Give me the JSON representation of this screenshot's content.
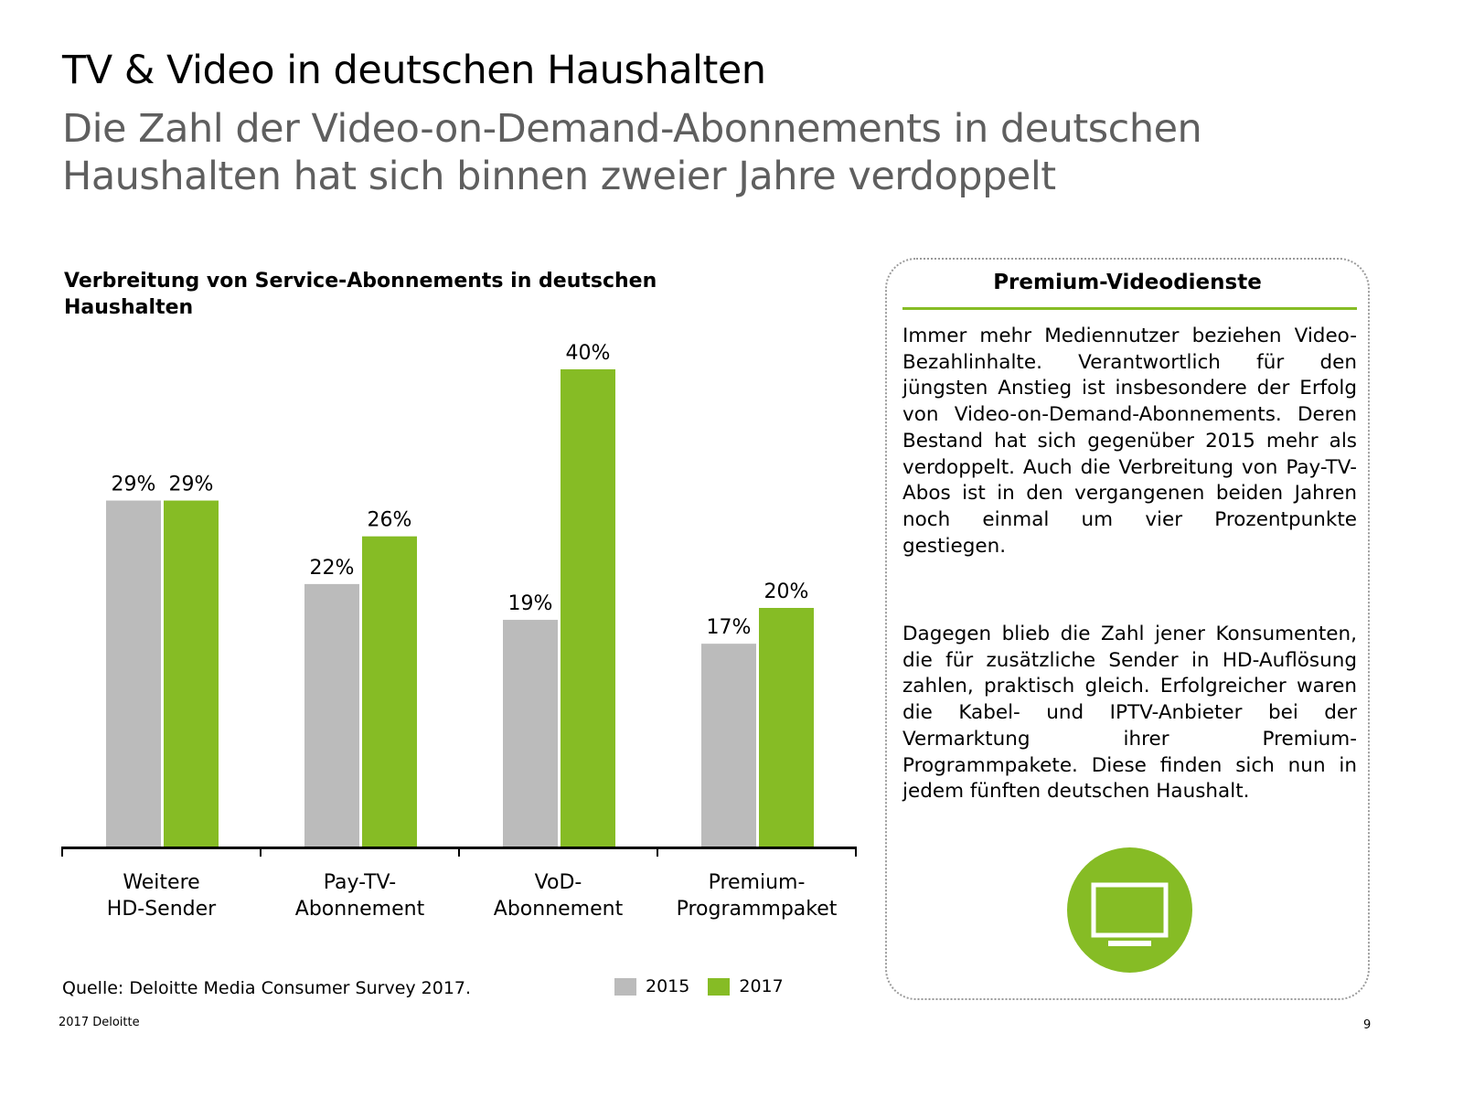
{
  "header": {
    "title": "TV & Video in deutschen Haushalten",
    "subtitle": "Die Zahl der Video-on-Demand-Abonnements in deutschen Haushalten hat sich binnen zweier Jahre verdoppelt"
  },
  "chart_data": {
    "type": "bar",
    "title": "Verbreitung von Service-Abonnements in deutschen Haushalten",
    "xlabel": "",
    "ylabel": "",
    "ylim": [
      0,
      40
    ],
    "grid": false,
    "legend_position": "bottom-right",
    "categories": [
      "Weitere HD-Sender",
      "Pay-TV-Abonnement",
      "VoD-Abonnement",
      "Premium-Programmpaket"
    ],
    "category_lines": [
      [
        "Weitere",
        "HD-Sender"
      ],
      [
        "Pay-TV-",
        "Abonnement"
      ],
      [
        "VoD-",
        "Abonnement"
      ],
      [
        "Premium-",
        "Programmpaket"
      ]
    ],
    "series": [
      {
        "name": "2015",
        "color": "#bbbbbb",
        "values": [
          29,
          22,
          19,
          17
        ],
        "labels": [
          "29%",
          "22%",
          "19%",
          "17%"
        ]
      },
      {
        "name": "2017",
        "color": "#86bc25",
        "values": [
          29,
          26,
          40,
          20
        ],
        "labels": [
          "29%",
          "26%",
          "40%",
          "20%"
        ]
      }
    ]
  },
  "source": "Quelle: Deloitte Media Consumer Survey 2017.",
  "legend": {
    "items": [
      "2015",
      "2017"
    ]
  },
  "sidebar": {
    "title": "Premium-Videodienste",
    "paragraph1": "Immer mehr Mediennutzer beziehen Video-Bezahlinhalte. Verantwortlich für den jüngsten Anstieg ist insbesondere der Erfolg von Video-on-Demand-Abonnements. Deren Bestand hat sich gegenüber 2015 mehr als verdoppelt. Auch die Verbreitung von Pay-TV-Abos ist in den vergangenen beiden Jahren noch einmal um vier Prozentpunkte gestiegen.",
    "paragraph2": "Dagegen blieb die Zahl jener Konsumenten, die für zusätzliche Sender in HD-Auflösung zahlen, praktisch gleich. Erfolgreicher waren die Kabel- und IPTV-Anbieter bei der Vermarktung ihrer Premium-Programmpakete. Diese finden sich nun in jedem fünften deutschen Haushalt.",
    "icon": "tv-icon",
    "accent": "#86bc25"
  },
  "footer": {
    "copyright": "2017 Deloitte",
    "page_number": "9"
  }
}
